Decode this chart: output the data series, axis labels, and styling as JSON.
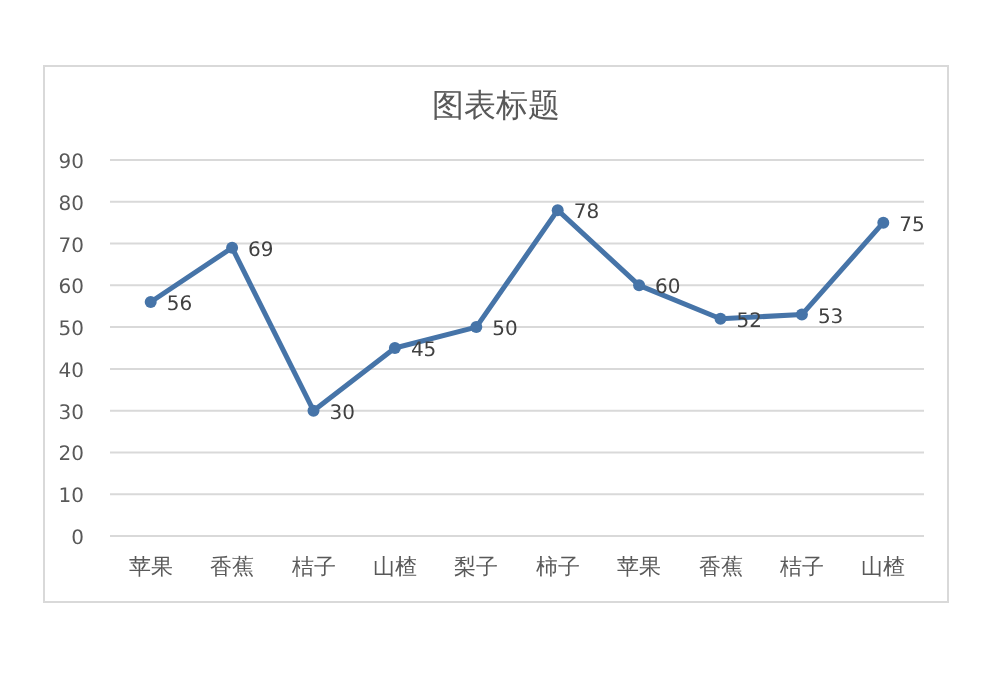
{
  "chart_data": {
    "type": "line",
    "title": "图表标题",
    "categories": [
      "苹果",
      "香蕉",
      "桔子",
      "山楂",
      "梨子",
      "柿子",
      "苹果",
      "香蕉",
      "桔子",
      "山楂"
    ],
    "values": [
      56,
      69,
      30,
      45,
      50,
      78,
      60,
      52,
      53,
      75
    ],
    "color": "#4674a8",
    "ylim": [
      0,
      90
    ],
    "yticks": [
      0,
      10,
      20,
      30,
      40,
      50,
      60,
      70,
      80,
      90
    ],
    "grid": "y",
    "marker": "circle",
    "line_style": "solid",
    "data_labels": true
  }
}
